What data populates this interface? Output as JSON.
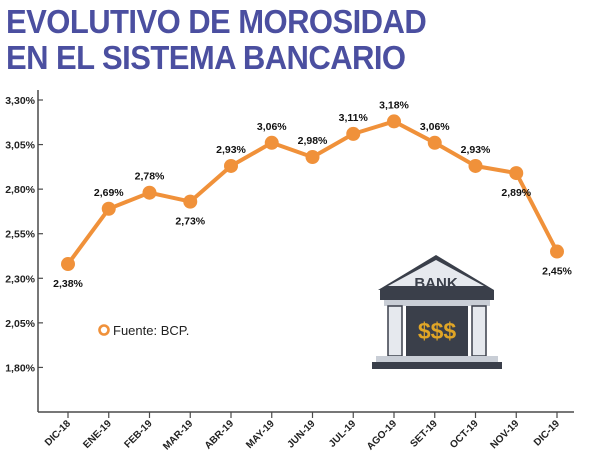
{
  "title": {
    "line1": "EVOLUTIVO DE MOROSIDAD",
    "line2": "EN EL SISTEMA BANCARIO"
  },
  "colors": {
    "title": "#4b4fa0",
    "series": "#f0913a",
    "axis": "#4a4a4a",
    "bank_dark": "#3a3f4a",
    "bank_light": "#e6e9ee",
    "bank_gold": "#e0a526"
  },
  "legend": {
    "text": "Fuente: BCP.",
    "marker": "orange-circle-icon"
  },
  "icon": {
    "name": "bank-building-icon",
    "sign": "BANK",
    "money": "$$$"
  },
  "chart_data": {
    "type": "line",
    "categories": [
      "DIC-18",
      "ENE-19",
      "FEB-19",
      "MAR-19",
      "ABR-19",
      "MAY-19",
      "JUN-19",
      "JUL-19",
      "AGO-19",
      "SET-19",
      "OCT-19",
      "NOV-19",
      "DIC-19"
    ],
    "series": [
      {
        "values": [
          2.38,
          2.69,
          2.78,
          2.73,
          2.93,
          3.06,
          2.98,
          3.11,
          3.18,
          3.06,
          2.93,
          2.89,
          2.45
        ]
      }
    ],
    "data_labels": [
      "2,38%",
      "2,69%",
      "2,78%",
      "2,73%",
      "2,93%",
      "3,06%",
      "2,98%",
      "3,11%",
      "3,18%",
      "3,06%",
      "2,93%",
      "2,89%",
      "2,45%"
    ],
    "label_positions": [
      "below",
      "above",
      "above",
      "below",
      "above",
      "above",
      "above",
      "above",
      "above",
      "above",
      "above",
      "below",
      "below"
    ],
    "y_ticks": [
      1.8,
      2.05,
      2.3,
      2.55,
      2.8,
      3.05,
      3.3
    ],
    "y_tick_labels": [
      "1,80%",
      "2,05%",
      "2,30%",
      "2,55%",
      "2,80%",
      "3,05%",
      "3,30%"
    ],
    "ylim": [
      1.55,
      3.3
    ],
    "grid": false,
    "xlabel": "",
    "ylabel": ""
  }
}
